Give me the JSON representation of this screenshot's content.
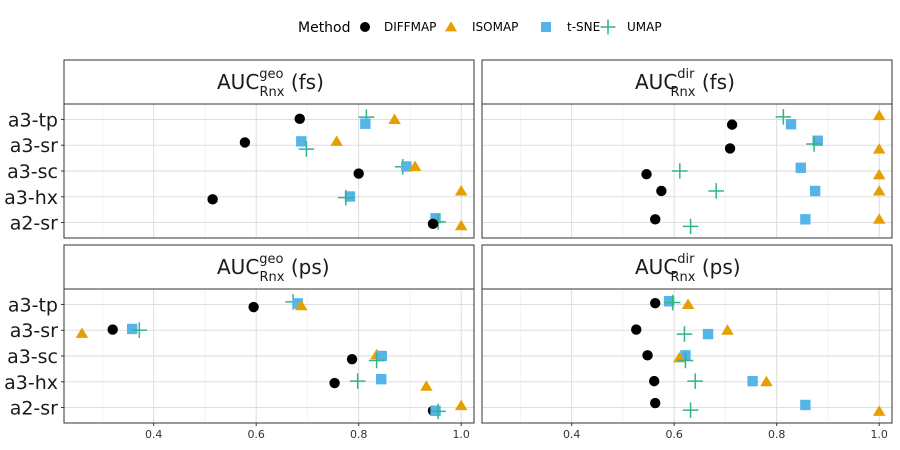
{
  "chart_data": {
    "type": "scatter",
    "legend_position": "top",
    "legend": {
      "title": "Method",
      "items": [
        {
          "name": "DIFFMAP",
          "shape": "circle",
          "color": "#000000"
        },
        {
          "name": "ISOMAP",
          "shape": "triangle",
          "color": "#E69F00"
        },
        {
          "name": "t-SNE",
          "shape": "square",
          "color": "#56B4E9"
        },
        {
          "name": "UMAP",
          "shape": "plus",
          "color": "#30B58B"
        }
      ]
    },
    "categories": [
      "a3-tp",
      "a3-sr",
      "a3-sc",
      "a3-hx",
      "a2-sr"
    ],
    "facets": [
      {
        "id": "geo-fs",
        "title_main": "AUC",
        "title_sup": "geo",
        "title_sub": "Rnx",
        "title_suffix": " (fs)",
        "xlim": [
          0.225,
          1.025
        ],
        "xticks": [
          0.4,
          0.6,
          0.8,
          1.0
        ],
        "xtick_labels": [],
        "points": [
          {
            "method": "UMAP",
            "y": "a3-tp",
            "x": 0.815,
            "offset": 0.18
          },
          {
            "method": "DIFFMAP",
            "y": "a3-tp",
            "x": 0.685,
            "offset": 0.05
          },
          {
            "method": "ISOMAP",
            "y": "a3-tp",
            "x": 0.87,
            "offset": 0.0
          },
          {
            "method": "t-SNE",
            "y": "a3-tp",
            "x": 0.813,
            "offset": -0.33
          },
          {
            "method": "DIFFMAP",
            "y": "a3-sr",
            "x": 0.578,
            "offset": 0.22
          },
          {
            "method": "t-SNE",
            "y": "a3-sr",
            "x": 0.688,
            "offset": 0.3
          },
          {
            "method": "ISOMAP",
            "y": "a3-sr",
            "x": 0.757,
            "offset": 0.3
          },
          {
            "method": "UMAP",
            "y": "a3-sr",
            "x": 0.698,
            "offset": -0.3
          },
          {
            "method": "UMAP",
            "y": "a3-sc",
            "x": 0.886,
            "offset": 0.33
          },
          {
            "method": "t-SNE",
            "y": "a3-sc",
            "x": 0.893,
            "offset": 0.35
          },
          {
            "method": "ISOMAP",
            "y": "a3-sc",
            "x": 0.91,
            "offset": 0.35
          },
          {
            "method": "DIFFMAP",
            "y": "a3-sc",
            "x": 0.8,
            "offset": -0.2
          },
          {
            "method": "ISOMAP",
            "y": "a3-hx",
            "x": 1.0,
            "offset": 0.45
          },
          {
            "method": "t-SNE",
            "y": "a3-hx",
            "x": 0.783,
            "offset": 0.02
          },
          {
            "method": "UMAP",
            "y": "a3-hx",
            "x": 0.775,
            "offset": -0.07
          },
          {
            "method": "DIFFMAP",
            "y": "a3-hx",
            "x": 0.515,
            "offset": -0.2
          },
          {
            "method": "t-SNE",
            "y": "a2-sr",
            "x": 0.95,
            "offset": 0.33
          },
          {
            "method": "UMAP",
            "y": "a2-sr",
            "x": 0.955,
            "offset": 0.05
          },
          {
            "method": "DIFFMAP",
            "y": "a2-sr",
            "x": 0.945,
            "offset": -0.1
          },
          {
            "method": "ISOMAP",
            "y": "a2-sr",
            "x": 1.0,
            "offset": -0.25
          }
        ]
      },
      {
        "id": "dir-fs",
        "title_main": "AUC",
        "title_sup": "dir",
        "title_sub": "Rnx",
        "title_suffix": " (fs)",
        "xlim": [
          0.225,
          1.025
        ],
        "xticks": [
          0.4,
          0.6,
          0.8,
          1.0
        ],
        "xtick_labels": [],
        "points": [
          {
            "method": "UMAP",
            "y": "a3-tp",
            "x": 0.813,
            "offset": 0.2
          },
          {
            "method": "ISOMAP",
            "y": "a3-tp",
            "x": 1.0,
            "offset": 0.3
          },
          {
            "method": "DIFFMAP",
            "y": "a3-tp",
            "x": 0.713,
            "offset": -0.4
          },
          {
            "method": "t-SNE",
            "y": "a3-tp",
            "x": 0.828,
            "offset": -0.37
          },
          {
            "method": "t-SNE",
            "y": "a3-sr",
            "x": 0.88,
            "offset": 0.35
          },
          {
            "method": "UMAP",
            "y": "a3-sr",
            "x": 0.873,
            "offset": 0.1
          },
          {
            "method": "DIFFMAP",
            "y": "a3-sr",
            "x": 0.709,
            "offset": -0.25
          },
          {
            "method": "ISOMAP",
            "y": "a3-sr",
            "x": 1.0,
            "offset": -0.3
          },
          {
            "method": "t-SNE",
            "y": "a3-sc",
            "x": 0.847,
            "offset": 0.25
          },
          {
            "method": "UMAP",
            "y": "a3-sc",
            "x": 0.611,
            "offset": 0.0
          },
          {
            "method": "DIFFMAP",
            "y": "a3-sc",
            "x": 0.546,
            "offset": -0.25
          },
          {
            "method": "ISOMAP",
            "y": "a3-sc",
            "x": 1.0,
            "offset": -0.3
          },
          {
            "method": "DIFFMAP",
            "y": "a3-hx",
            "x": 0.575,
            "offset": 0.45
          },
          {
            "method": "UMAP",
            "y": "a3-hx",
            "x": 0.682,
            "offset": 0.45
          },
          {
            "method": "t-SNE",
            "y": "a3-hx",
            "x": 0.875,
            "offset": 0.45
          },
          {
            "method": "ISOMAP",
            "y": "a3-hx",
            "x": 1.0,
            "offset": 0.45
          },
          {
            "method": "t-SNE",
            "y": "a2-sr",
            "x": 0.856,
            "offset": 0.25
          },
          {
            "method": "DIFFMAP",
            "y": "a2-sr",
            "x": 0.563,
            "offset": 0.25
          },
          {
            "method": "ISOMAP",
            "y": "a2-sr",
            "x": 1.0,
            "offset": 0.25
          },
          {
            "method": "UMAP",
            "y": "a2-sr",
            "x": 0.632,
            "offset": -0.3
          }
        ]
      },
      {
        "id": "geo-ps",
        "title_main": "AUC",
        "title_sup": "geo",
        "title_sub": "Rnx",
        "title_suffix": " (ps)",
        "xlim": [
          0.225,
          1.025
        ],
        "xticks": [
          0.4,
          0.6,
          0.8,
          1.0
        ],
        "xtick_labels": [
          "0.4",
          "0.6",
          "0.8",
          "1.0"
        ],
        "points": [
          {
            "method": "UMAP",
            "y": "a3-tp",
            "x": 0.672,
            "offset": 0.2
          },
          {
            "method": "t-SNE",
            "y": "a3-tp",
            "x": 0.681,
            "offset": 0.08
          },
          {
            "method": "ISOMAP",
            "y": "a3-tp",
            "x": 0.688,
            "offset": -0.1
          },
          {
            "method": "DIFFMAP",
            "y": "a3-tp",
            "x": 0.595,
            "offset": -0.2
          },
          {
            "method": "t-SNE",
            "y": "a3-sr",
            "x": 0.358,
            "offset": 0.1
          },
          {
            "method": "DIFFMAP",
            "y": "a3-sr",
            "x": 0.32,
            "offset": 0.05
          },
          {
            "method": "UMAP",
            "y": "a3-sr",
            "x": 0.372,
            "offset": 0.0
          },
          {
            "method": "ISOMAP",
            "y": "a3-sr",
            "x": 0.26,
            "offset": -0.25
          },
          {
            "method": "ISOMAP",
            "y": "a3-sc",
            "x": 0.835,
            "offset": 0.1
          },
          {
            "method": "t-SNE",
            "y": "a3-sc",
            "x": 0.845,
            "offset": 0.0
          },
          {
            "method": "DIFFMAP",
            "y": "a3-sc",
            "x": 0.787,
            "offset": -0.25
          },
          {
            "method": "UMAP",
            "y": "a3-sc",
            "x": 0.835,
            "offset": -0.35
          },
          {
            "method": "t-SNE",
            "y": "a3-hx",
            "x": 0.844,
            "offset": 0.2
          },
          {
            "method": "DIFFMAP",
            "y": "a3-hx",
            "x": 0.753,
            "offset": -0.1
          },
          {
            "method": "UMAP",
            "y": "a3-hx",
            "x": 0.798,
            "offset": 0.05
          },
          {
            "method": "ISOMAP",
            "y": "a3-hx",
            "x": 0.932,
            "offset": -0.35
          },
          {
            "method": "ISOMAP",
            "y": "a2-sr",
            "x": 1.0,
            "offset": 0.15
          },
          {
            "method": "DIFFMAP",
            "y": "a2-sr",
            "x": 0.945,
            "offset": -0.25
          },
          {
            "method": "t-SNE",
            "y": "a2-sr",
            "x": 0.95,
            "offset": -0.25
          },
          {
            "method": "UMAP",
            "y": "a2-sr",
            "x": 0.955,
            "offset": -0.3
          }
        ]
      },
      {
        "id": "dir-ps",
        "title_main": "AUC",
        "title_sup": "dir",
        "title_sub": "Rnx",
        "title_suffix": " (ps)",
        "xlim": [
          0.225,
          1.025
        ],
        "xticks": [
          0.4,
          0.6,
          0.8,
          1.0
        ],
        "xtick_labels": [
          "0.4",
          "0.6",
          "0.8",
          "1.0"
        ],
        "points": [
          {
            "method": "t-SNE",
            "y": "a3-tp",
            "x": 0.59,
            "offset": 0.25
          },
          {
            "method": "UMAP",
            "y": "a3-tp",
            "x": 0.597,
            "offset": 0.15
          },
          {
            "method": "DIFFMAP",
            "y": "a3-tp",
            "x": 0.563,
            "offset": 0.1
          },
          {
            "method": "ISOMAP",
            "y": "a3-tp",
            "x": 0.627,
            "offset": 0.0
          },
          {
            "method": "DIFFMAP",
            "y": "a3-sr",
            "x": 0.526,
            "offset": 0.05
          },
          {
            "method": "ISOMAP",
            "y": "a3-sr",
            "x": 0.704,
            "offset": 0.0
          },
          {
            "method": "t-SNE",
            "y": "a3-sr",
            "x": 0.666,
            "offset": -0.3
          },
          {
            "method": "UMAP",
            "y": "a3-sr",
            "x": 0.62,
            "offset": -0.3
          },
          {
            "method": "DIFFMAP",
            "y": "a3-sc",
            "x": 0.548,
            "offset": 0.05
          },
          {
            "method": "t-SNE",
            "y": "a3-sc",
            "x": 0.622,
            "offset": 0.05
          },
          {
            "method": "ISOMAP",
            "y": "a3-sc",
            "x": 0.61,
            "offset": -0.15
          },
          {
            "method": "UMAP",
            "y": "a3-sc",
            "x": 0.622,
            "offset": -0.35
          },
          {
            "method": "t-SNE",
            "y": "a3-hx",
            "x": 0.753,
            "offset": 0.05
          },
          {
            "method": "UMAP",
            "y": "a3-hx",
            "x": 0.641,
            "offset": 0.05
          },
          {
            "method": "DIFFMAP",
            "y": "a3-hx",
            "x": 0.561,
            "offset": 0.05
          },
          {
            "method": "ISOMAP",
            "y": "a3-hx",
            "x": 0.78,
            "offset": 0.0
          },
          {
            "method": "DIFFMAP",
            "y": "a2-sr",
            "x": 0.563,
            "offset": 0.35
          },
          {
            "method": "t-SNE",
            "y": "a2-sr",
            "x": 0.856,
            "offset": 0.2
          },
          {
            "method": "UMAP",
            "y": "a2-sr",
            "x": 0.632,
            "offset": -0.2
          },
          {
            "method": "ISOMAP",
            "y": "a2-sr",
            "x": 1.0,
            "offset": -0.3
          }
        ]
      }
    ]
  }
}
